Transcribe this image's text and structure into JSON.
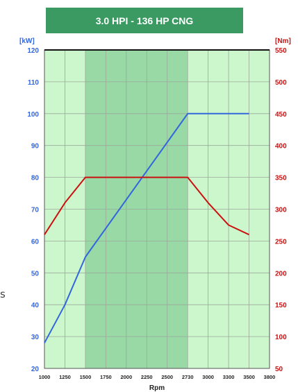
{
  "chart_data": {
    "type": "line",
    "title": "3.0 HPI - 136 HP CNG",
    "xlabel": "Rpm",
    "y_left_label": "[kW]",
    "y_right_label": "[Nm]",
    "x_ticks": [
      1000,
      1250,
      1500,
      1750,
      2000,
      2250,
      2500,
      2730,
      3000,
      3300,
      3500,
      3800
    ],
    "y_left_ticks": [
      20,
      30,
      40,
      50,
      60,
      70,
      80,
      90,
      100,
      110,
      120
    ],
    "y_right_ticks": [
      50,
      100,
      150,
      200,
      250,
      300,
      350,
      400,
      450,
      500,
      550
    ],
    "ylim_left": [
      20,
      120
    ],
    "ylim_right": [
      50,
      550
    ],
    "highlight_band": [
      1500,
      2730
    ],
    "series": [
      {
        "axis": "left",
        "color": "#3366dd",
        "x": [
          1000,
          1250,
          1500,
          2730,
          3500
        ],
        "y": [
          28,
          40,
          55,
          100,
          100
        ]
      },
      {
        "axis": "right",
        "color": "#cc1111",
        "x": [
          1000,
          1250,
          1500,
          2730,
          3000,
          3300,
          3500
        ],
        "y": [
          260,
          310,
          350,
          350,
          310,
          275,
          260
        ]
      }
    ],
    "colors": {
      "plot_bg": "#ccf7cc",
      "band": "#99d9a6",
      "grid": "#9aa89a",
      "left_axis": "#3366dd",
      "right_axis": "#cc1111",
      "title_bg": "#3a9a62"
    }
  },
  "stray_text": "s"
}
